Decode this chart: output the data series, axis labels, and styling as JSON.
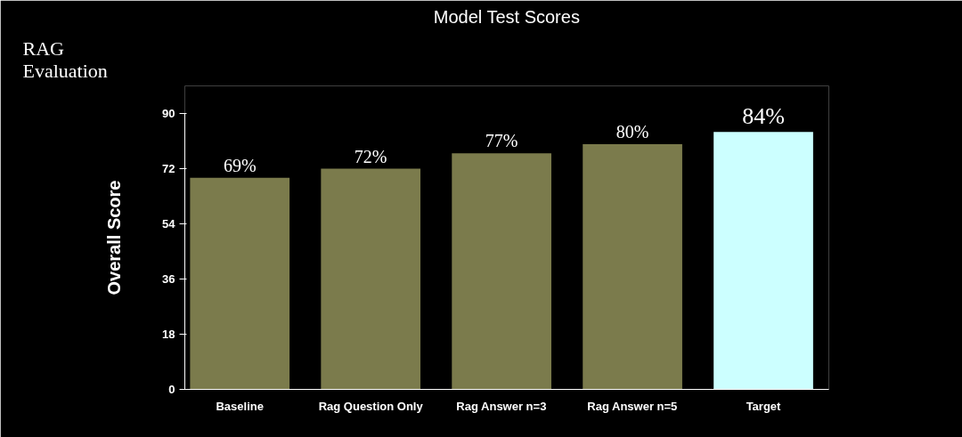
{
  "chart_data": {
    "type": "bar",
    "title": "Model Test Scores",
    "ylabel": "Overall Score",
    "annotations": [
      "RAG Evaluation"
    ],
    "categories": [
      "Baseline",
      "Rag Question Only",
      "Rag Answer n=3",
      "Rag Answer n=5",
      "Target"
    ],
    "values": [
      69,
      72,
      77,
      80,
      84
    ],
    "value_labels": [
      "69%",
      "72%",
      "77%",
      "80%",
      "84%"
    ],
    "colors": [
      "#7b7b4c",
      "#7b7b4c",
      "#7b7b4c",
      "#7b7b4c",
      "#ccffff"
    ],
    "ylim": [
      0,
      90
    ],
    "yticks": [
      0,
      18,
      36,
      54,
      72,
      90
    ],
    "grid": false
  }
}
